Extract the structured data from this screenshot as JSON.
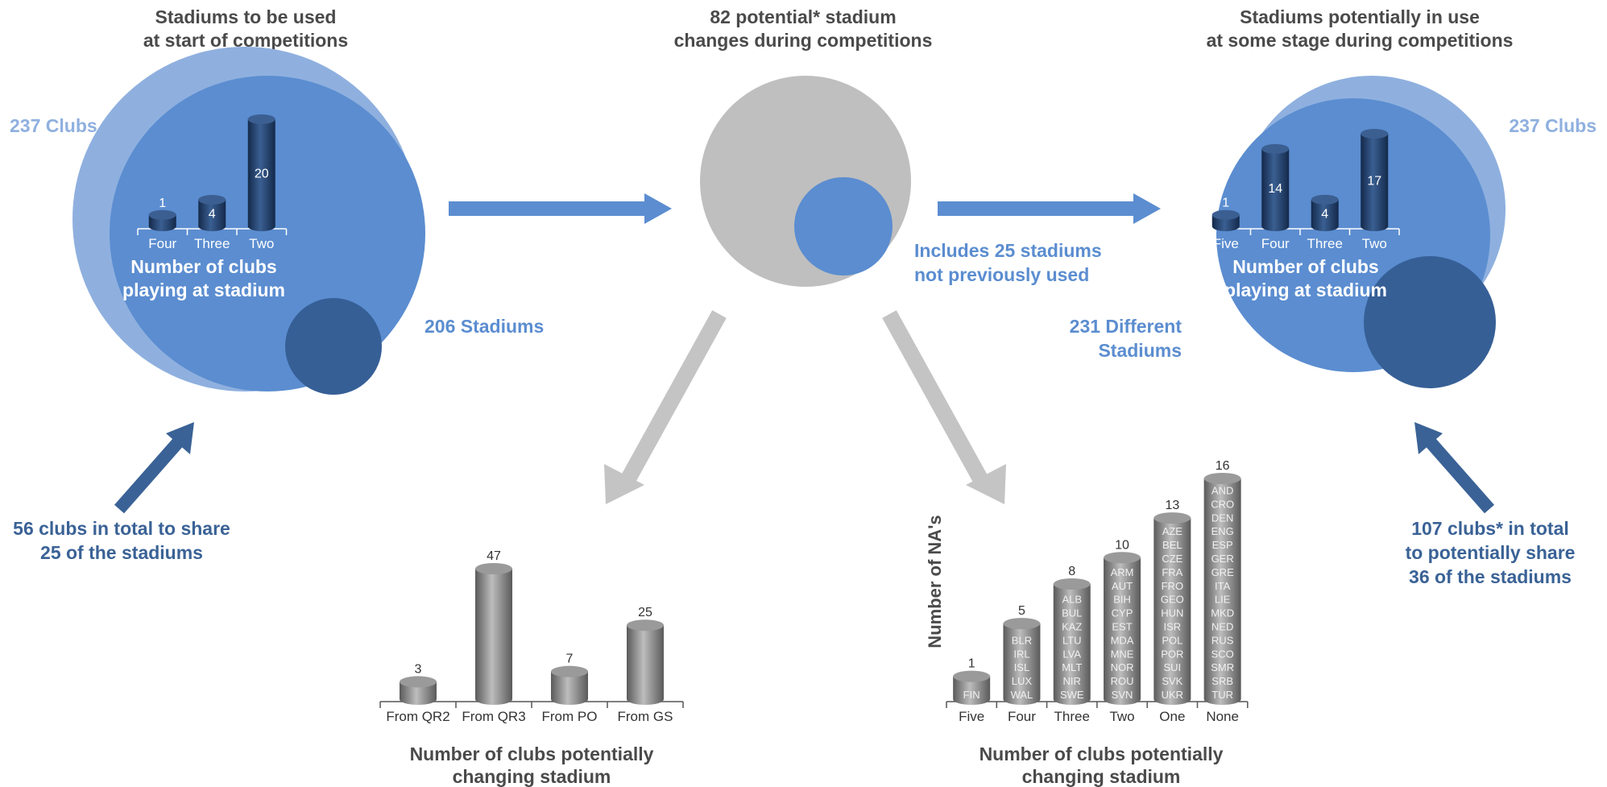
{
  "headers": {
    "left_line1": "Stadiums to be used",
    "left_line2": "at start of competitions",
    "center_line1": "82 potential* stadium",
    "center_line2": "changes during competitions",
    "right_line1": "Stadiums potentially in use",
    "right_line2": "at some stage during competitions"
  },
  "left_panel": {
    "clubs_label": "237 Clubs",
    "stadiums_label": "206 Stadiums",
    "inner_title_line1": "Number of clubs",
    "inner_title_line2": "playing at stadium",
    "note_line1": "56 clubs in total to share",
    "note_line2": "25 of the stadiums"
  },
  "center_panel": {
    "new_line1": "Includes 25 stadiums",
    "new_line2": "not previously used"
  },
  "right_panel": {
    "clubs_label": "237 Clubs",
    "stadiums_line1": "231 Different",
    "stadiums_line2": "Stadiums",
    "inner_title_line1": "Number of clubs",
    "inner_title_line2": "playing at stadium",
    "note_line1": "107 clubs* in total",
    "note_line2": "to potentially share",
    "note_line3": "36 of the stadiums"
  },
  "bottom_left": {
    "caption_line1": "Number of clubs potentially",
    "caption_line2": "changing stadium"
  },
  "bottom_right": {
    "caption_line1": "Number of clubs potentially",
    "caption_line2": "changing stadium"
  },
  "colors": {
    "light_blue": "#8fb0df",
    "mid_blue": "#5b8dd0",
    "dark_blue": "#3a6296",
    "navy_bar": "#1f3d6b",
    "grey": "#bfbfbf",
    "bar_grey": "#8c8c8c"
  },
  "chart_data": [
    {
      "type": "bar",
      "categories": [
        "Four",
        "Three",
        "Two"
      ],
      "values": [
        1,
        4,
        20
      ],
      "ylim": [
        0,
        20
      ]
    },
    {
      "type": "bar",
      "categories": [
        "Five",
        "Four",
        "Three",
        "Two"
      ],
      "values": [
        1,
        14,
        4,
        17
      ],
      "ylim": [
        0,
        17
      ]
    },
    {
      "type": "bar",
      "categories": [
        "From QR2",
        "From QR3",
        "From PO",
        "From GS"
      ],
      "values": [
        3,
        47,
        7,
        25
      ],
      "ylim": [
        0,
        47
      ]
    },
    {
      "type": "bar",
      "ylabel": "Number of NA's",
      "categories": [
        "Five",
        "Four",
        "Three",
        "Two",
        "One",
        "None"
      ],
      "values": [
        1,
        5,
        8,
        10,
        13,
        16
      ],
      "ylim": [
        0,
        16
      ],
      "bar_labels": [
        [
          "FIN"
        ],
        [
          "BLR",
          "IRL",
          "ISL",
          "LUX",
          "WAL"
        ],
        [
          "ALB",
          "BUL",
          "KAZ",
          "LTU",
          "LVA",
          "MLT",
          "NIR",
          "SWE"
        ],
        [
          "ARM",
          "AUT",
          "BIH",
          "CYP",
          "EST",
          "MDA",
          "MNE",
          "NOR",
          "ROU",
          "SVN"
        ],
        [
          "AZE",
          "BEL",
          "CZE",
          "FRA",
          "FRO",
          "GEO",
          "HUN",
          "ISR",
          "POL",
          "POR",
          "SUI",
          "SVK",
          "UKR"
        ],
        [
          "AND",
          "CRO",
          "DEN",
          "ENG",
          "ESP",
          "GER",
          "GRE",
          "ITA",
          "LIE",
          "MKD",
          "NED",
          "RUS",
          "SCO",
          "SMR",
          "SRB",
          "TUR"
        ]
      ]
    }
  ]
}
